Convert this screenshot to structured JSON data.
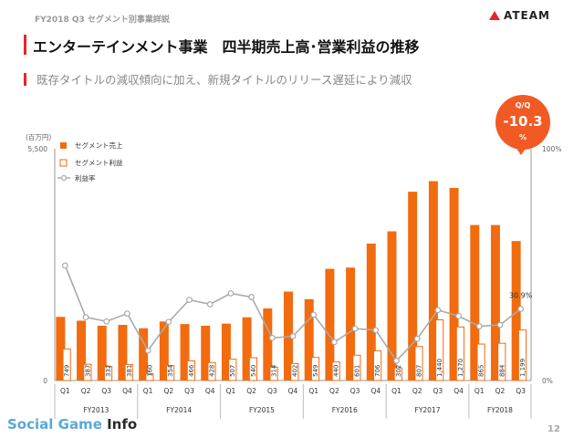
{
  "header": {
    "section": "FY2018 Q3 セグメント別事業詳説",
    "title": "エンターテインメント事業　四半期売上高･営業利益の推移",
    "subtitle": "既存タイトルの減収傾向に加え、新規タイトルのリリース遅延により減収",
    "logo": "ATEAM"
  },
  "badge": {
    "label": "Q/Q",
    "value": "-10.3",
    "unit": "%"
  },
  "footer": {
    "brand_part1": "Social Game ",
    "brand_part2": "Info",
    "page": "12"
  },
  "chart_data": {
    "type": "bar",
    "unit_label": "(百万円)",
    "categories": [
      "Q1",
      "Q2",
      "Q3",
      "Q4",
      "Q1",
      "Q2",
      "Q3",
      "Q4",
      "Q1",
      "Q2",
      "Q3",
      "Q4",
      "Q1",
      "Q2",
      "Q3",
      "Q4",
      "Q1",
      "Q2",
      "Q3",
      "Q4",
      "Q1",
      "Q2",
      "Q3"
    ],
    "groups": [
      {
        "label": "FY2013",
        "count": 4
      },
      {
        "label": "FY2014",
        "count": 4
      },
      {
        "label": "FY2015",
        "count": 4
      },
      {
        "label": "FY2016",
        "count": 4
      },
      {
        "label": "FY2017",
        "count": 4
      },
      {
        "label": "FY2018",
        "count": 3
      }
    ],
    "series": [
      {
        "name": "セグメント売上",
        "kind": "bar",
        "color": "#f26b0f",
        "values": [
          1510,
          1420,
          1300,
          1320,
          1240,
          1400,
          1340,
          1300,
          1350,
          1500,
          1710,
          2110,
          1930,
          2650,
          2680,
          3250,
          3540,
          4480,
          4730,
          4570,
          3690,
          3690,
          3310
        ],
        "labels": [
          "",
          "",
          "",
          "",
          "",
          "",
          "",
          "",
          "",
          "",
          "",
          "",
          "",
          "",
          "",
          "",
          "",
          "",
          "",
          "",
          "",
          "",
          ""
        ]
      },
      {
        "name": "セグメント利益",
        "kind": "bar",
        "color": "#ffffff",
        "stroke": "#f26b0f",
        "values": [
          749,
          387,
          332,
          381,
          160,
          354,
          466,
          428,
          507,
          540,
          314,
          402,
          549,
          440,
          601,
          706,
          302,
          807,
          1440,
          1270,
          865,
          884,
          1199
        ],
        "labels": [
          "749",
          "387",
          "332",
          "381",
          "160",
          "354",
          "466",
          "428",
          "507",
          "540",
          "314",
          "402",
          "549",
          "440",
          "601",
          "706",
          "302",
          "807",
          "1,440",
          "1,270",
          "865",
          "884",
          "1,199"
        ]
      },
      {
        "name": "利益率",
        "kind": "line",
        "color": "#aaaaaa",
        "values": [
          49.6,
          27.3,
          25.5,
          28.9,
          12.9,
          25.3,
          34.8,
          32.9,
          37.6,
          36.0,
          18.4,
          19.1,
          28.4,
          16.6,
          22.4,
          21.7,
          8.5,
          18.0,
          30.4,
          27.8,
          23.4,
          24.0,
          30.9
        ],
        "labels": [
          "",
          "",
          "",
          "",
          "",
          "",
          "",
          "",
          "",
          "",
          "",
          "",
          "",
          "",
          "",
          "",
          "",
          "",
          "",
          "",
          "",
          "",
          "30.9%"
        ]
      }
    ],
    "y_left": {
      "min": 0,
      "max": 5500,
      "ticks": [
        "0",
        "5,500"
      ]
    },
    "y_right": {
      "min": 0,
      "max": 100,
      "ticks": [
        "0%",
        "100%"
      ]
    },
    "legend": [
      "セグメント売上",
      "セグメント利益",
      "利益率"
    ]
  }
}
